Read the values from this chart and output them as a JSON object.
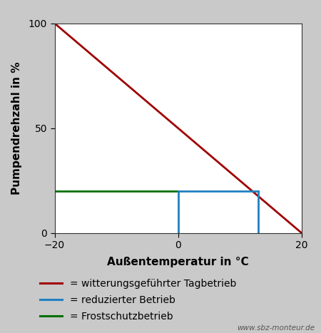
{
  "bg_color": "#c9c9c9",
  "plot_bg": "#ffffff",
  "xlabel": "Außentemperatur in °C",
  "ylabel": "Pumpendrehzahl in %",
  "xlim": [
    -20,
    20
  ],
  "ylim": [
    0,
    100
  ],
  "xticks": [
    -20,
    0,
    20
  ],
  "yticks": [
    0,
    50,
    100
  ],
  "red_line": {
    "x": [
      -20,
      20
    ],
    "y": [
      100,
      0
    ],
    "color": "#a00000",
    "linewidth": 2.0
  },
  "green_line": {
    "x": [
      -20,
      0
    ],
    "y": [
      20,
      20
    ],
    "color": "#007000",
    "linewidth": 2.0
  },
  "blue_line_h": {
    "x": [
      0,
      13
    ],
    "y": [
      20,
      20
    ],
    "color": "#2080c0",
    "linewidth": 2.0
  },
  "blue_line_v": {
    "x": [
      0,
      0
    ],
    "y": [
      0,
      20
    ],
    "color": "#2080c0",
    "linewidth": 2.0
  },
  "blue_line_drop": {
    "x": [
      13,
      13
    ],
    "y": [
      20,
      0
    ],
    "color": "#2080c0",
    "linewidth": 2.0
  },
  "legend": [
    {
      "label": "= witterungsgeführter Tagbetrieb",
      "color": "#a00000"
    },
    {
      "label": "= reduzierter Betrieb",
      "color": "#2080c0"
    },
    {
      "label": "= Frostschutzbetrieb",
      "color": "#007000"
    }
  ],
  "watermark": "www.sbz-monteur.de",
  "label_fontsize": 11,
  "tick_fontsize": 10,
  "legend_fontsize": 10
}
